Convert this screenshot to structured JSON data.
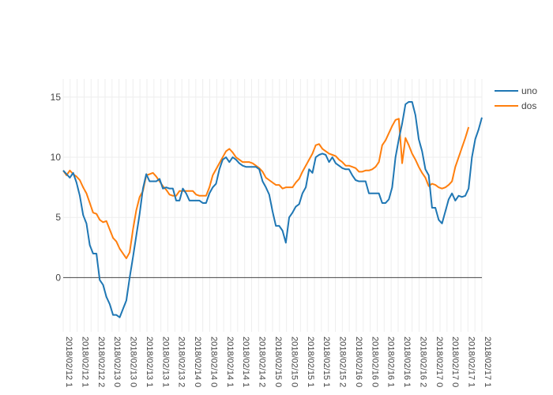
{
  "chart_data": {
    "type": "line",
    "title": "",
    "xlabel": "",
    "ylabel": "",
    "grid": true,
    "legend_position": "top-right",
    "ylim": [
      -4.5,
      16.5
    ],
    "y_ticks": [
      0,
      5,
      10,
      15
    ],
    "x_tick_labels": [
      "2018/02/12 1",
      "2018/02/12 1",
      "2018/02/12 2",
      "2018/02/13 0",
      "2018/02/13 0",
      "2018/02/13 1",
      "2018/02/13 1",
      "2018/02/13 2",
      "2018/02/14 0",
      "2018/02/14 0",
      "2018/02/14 1",
      "2018/02/14 1",
      "2018/02/14 2",
      "2018/02/15 0",
      "2018/02/15 0",
      "2018/02/15 1",
      "2018/02/15 1",
      "2018/02/15 2",
      "2018/02/16 0",
      "2018/02/16 0",
      "2018/02/16 1",
      "2018/02/16 1",
      "2018/02/16 2",
      "2018/02/17 0",
      "2018/02/17 0",
      "2018/02/17 1",
      "2018/02/17 1"
    ],
    "series": [
      {
        "name": "uno",
        "color": "#1f77b4",
        "values": [
          8.9,
          8.6,
          8.3,
          8.7,
          7.9,
          6.8,
          5.2,
          4.5,
          2.7,
          2.0,
          2.0,
          -0.2,
          -0.6,
          -1.6,
          -2.2,
          -3.1,
          -3.1,
          -3.3,
          -2.6,
          -1.9,
          0.0,
          1.7,
          3.5,
          5.3,
          7.4,
          8.6,
          8.0,
          8.0,
          8.0,
          8.2,
          7.4,
          7.5,
          7.4,
          7.4,
          6.4,
          6.4,
          7.4,
          7.0,
          6.4,
          6.4,
          6.4,
          6.4,
          6.2,
          6.2,
          7.0,
          7.5,
          7.8,
          9.0,
          9.8,
          10.0,
          9.6,
          10.0,
          9.8,
          9.5,
          9.3,
          9.2,
          9.2,
          9.2,
          9.2,
          9.0,
          8.0,
          7.5,
          6.9,
          5.5,
          4.3,
          4.3,
          3.9,
          2.9,
          5.0,
          5.4,
          5.9,
          6.1,
          7.0,
          7.5,
          9.0,
          8.7,
          10.0,
          10.2,
          10.3,
          10.2,
          9.6,
          10.0,
          9.5,
          9.3,
          9.1,
          9.0,
          9.0,
          8.5,
          8.1,
          8.0,
          8.0,
          8.0,
          7.0,
          7.0,
          7.0,
          7.0,
          6.2,
          6.2,
          6.5,
          7.5,
          10.0,
          11.5,
          12.8,
          14.4,
          14.6,
          14.6,
          13.5,
          11.5,
          10.5,
          9.0,
          8.5,
          5.8,
          5.8,
          4.8,
          4.5,
          5.5,
          6.5,
          7.0,
          6.4,
          6.8,
          6.7,
          6.8,
          7.4,
          10.0,
          11.5,
          12.3,
          13.3
        ]
      },
      {
        "name": "dos",
        "color": "#ff7f0e",
        "values": [
          8.9,
          8.5,
          8.9,
          8.6,
          8.4,
          8.1,
          7.5,
          7.0,
          6.2,
          5.4,
          5.3,
          4.8,
          4.6,
          4.7,
          4.0,
          3.3,
          3.0,
          2.4,
          2.0,
          1.6,
          2.1,
          4.0,
          5.6,
          6.7,
          7.2,
          8.5,
          8.6,
          8.7,
          8.4,
          8.0,
          7.6,
          7.3,
          6.9,
          6.8,
          6.8,
          7.2,
          7.2,
          7.2,
          7.2,
          7.2,
          6.9,
          6.8,
          6.8,
          6.8,
          7.5,
          8.5,
          9.0,
          9.5,
          10.0,
          10.5,
          10.7,
          10.4,
          10.0,
          9.8,
          9.6,
          9.6,
          9.6,
          9.5,
          9.3,
          9.1,
          8.8,
          8.3,
          8.1,
          7.9,
          7.7,
          7.7,
          7.4,
          7.5,
          7.5,
          7.5,
          7.9,
          8.2,
          8.8,
          9.3,
          9.8,
          10.3,
          11.0,
          11.1,
          10.7,
          10.5,
          10.3,
          10.2,
          10.1,
          9.8,
          9.6,
          9.3,
          9.3,
          9.2,
          9.1,
          8.8,
          8.8,
          8.9,
          8.9,
          9.0,
          9.2,
          9.6,
          11.0,
          11.4,
          12.0,
          12.6,
          13.1,
          13.2,
          9.5,
          11.6,
          11.0,
          10.3,
          9.8,
          9.2,
          8.7,
          8.3,
          7.6,
          7.8,
          7.7,
          7.5,
          7.4,
          7.5,
          7.7,
          8.0,
          9.2,
          10.0,
          10.8,
          11.6,
          12.5
        ]
      }
    ]
  }
}
